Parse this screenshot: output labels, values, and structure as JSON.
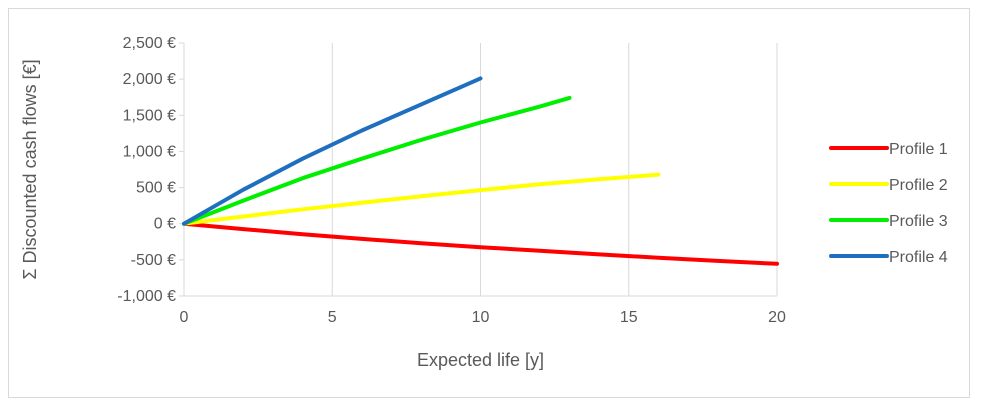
{
  "chart_data": {
    "type": "line",
    "xlabel": "Expected life [y]",
    "ylabel": "Σ Discounted cash flows [€]",
    "xlim": [
      0,
      20
    ],
    "ylim": [
      -1000,
      2500
    ],
    "x_ticks": [
      0,
      5,
      10,
      15,
      20
    ],
    "y_ticks": [
      -1000,
      -500,
      0,
      500,
      1000,
      1500,
      2000,
      2500
    ],
    "x_tick_labels": [
      "0",
      "5",
      "10",
      "15",
      "20"
    ],
    "y_tick_labels": [
      "-1,000 €",
      "-500 €",
      "0 €",
      "500 €",
      "1,000 €",
      "1,500 €",
      "2,000 €",
      "2,500 €"
    ],
    "grid": "vertical",
    "legend_position": "right",
    "series": [
      {
        "name": "Profile 1",
        "color": "#ff0000",
        "x": [
          0,
          2,
          4,
          6,
          8,
          10,
          12,
          14,
          16,
          18,
          20
        ],
        "y": [
          0,
          -75,
          -145,
          -210,
          -270,
          -325,
          -375,
          -425,
          -470,
          -515,
          -555
        ]
      },
      {
        "name": "Profile 2",
        "color": "#ffff00",
        "x": [
          0,
          2,
          4,
          6,
          8,
          10,
          12,
          14,
          16
        ],
        "y": [
          0,
          100,
          200,
          290,
          380,
          465,
          545,
          615,
          680
        ]
      },
      {
        "name": "Profile 3",
        "color": "#00ee00",
        "x": [
          0,
          2,
          4,
          6,
          8,
          10,
          12,
          13
        ],
        "y": [
          0,
          320,
          630,
          900,
          1160,
          1400,
          1620,
          1740
        ]
      },
      {
        "name": "Profile 4",
        "color": "#1f6fc0",
        "x": [
          0,
          2,
          4,
          6,
          8,
          10
        ],
        "y": [
          0,
          470,
          900,
          1290,
          1650,
          2010
        ]
      }
    ]
  }
}
